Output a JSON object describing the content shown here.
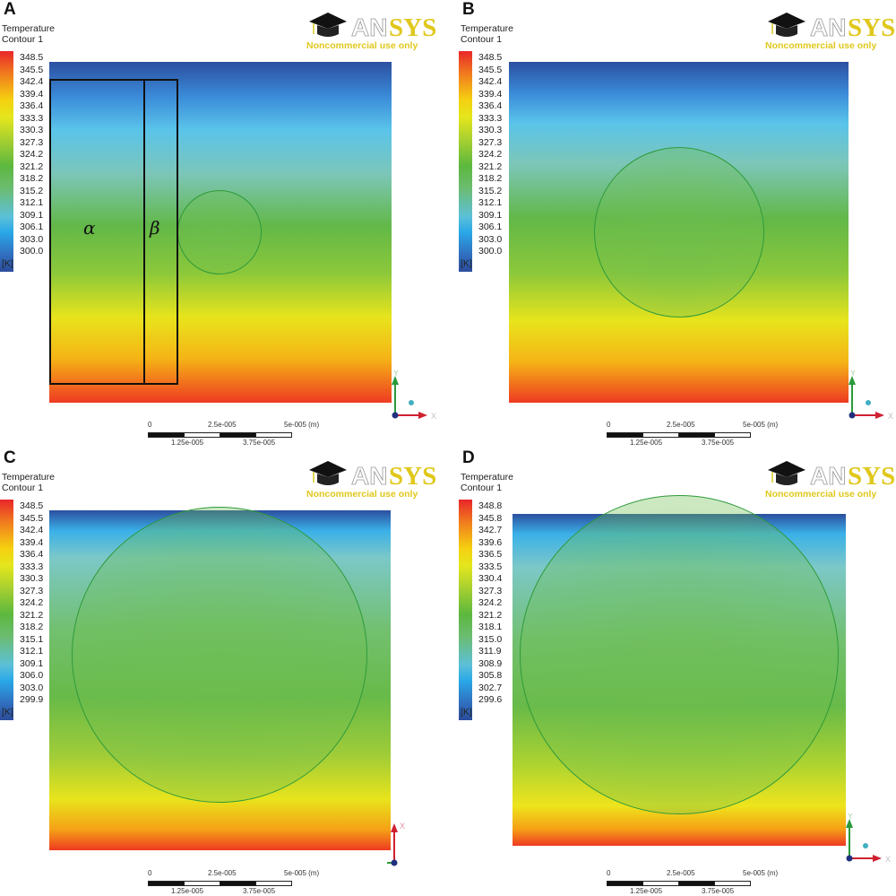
{
  "legend_title": [
    "Temperature",
    "Contour 1"
  ],
  "unit": "[K]",
  "logo": {
    "brand": "ANSYS",
    "subtitle": "Noncommercial use only"
  },
  "scale": {
    "top": [
      "0",
      "2.5e-005",
      "5e-005  (m)"
    ],
    "bottom": [
      "1.25e-005",
      "3.75e-005"
    ]
  },
  "chart_data": [
    {
      "type": "heatmap",
      "panel": "A",
      "quantity": "Temperature",
      "unit": "K",
      "colorbar_ticks": [
        "348.5",
        "345.5",
        "342.4",
        "339.4",
        "336.4",
        "333.3",
        "330.3",
        "327.3",
        "324.2",
        "321.2",
        "318.2",
        "315.2",
        "312.1",
        "309.1",
        "306.1",
        "303.0",
        "300.0"
      ],
      "range": [
        300.0,
        348.5
      ],
      "regions": [
        "α",
        "β"
      ],
      "axes": [
        "Y",
        "X"
      ]
    },
    {
      "type": "heatmap",
      "panel": "B",
      "quantity": "Temperature",
      "unit": "K",
      "colorbar_ticks": [
        "348.5",
        "345.5",
        "342.4",
        "339.4",
        "336.4",
        "333.3",
        "330.3",
        "327.3",
        "324.2",
        "321.2",
        "318.2",
        "315.2",
        "312.1",
        "309.1",
        "306.1",
        "303.0",
        "300.0"
      ],
      "range": [
        300.0,
        348.5
      ],
      "axes": [
        "Y",
        "X"
      ]
    },
    {
      "type": "heatmap",
      "panel": "C",
      "quantity": "Temperature",
      "unit": "K",
      "colorbar_ticks": [
        "348.5",
        "345.5",
        "342.4",
        "339.4",
        "336.4",
        "333.3",
        "330.3",
        "327.3",
        "324.2",
        "321.2",
        "318.2",
        "315.1",
        "312.1",
        "309.1",
        "306.0",
        "303.0",
        "299.9"
      ],
      "range": [
        299.9,
        348.5
      ],
      "axes": [
        "X",
        "Y"
      ]
    },
    {
      "type": "heatmap",
      "panel": "D",
      "quantity": "Temperature",
      "unit": "K",
      "colorbar_ticks": [
        "348.8",
        "345.8",
        "342.7",
        "339.6",
        "336.5",
        "333.5",
        "330.4",
        "327.3",
        "324.2",
        "321.2",
        "318.1",
        "315.0",
        "311.9",
        "308.9",
        "305.8",
        "302.7",
        "299.6"
      ],
      "range": [
        299.6,
        348.8
      ],
      "axes": [
        "Y",
        "X"
      ]
    }
  ]
}
